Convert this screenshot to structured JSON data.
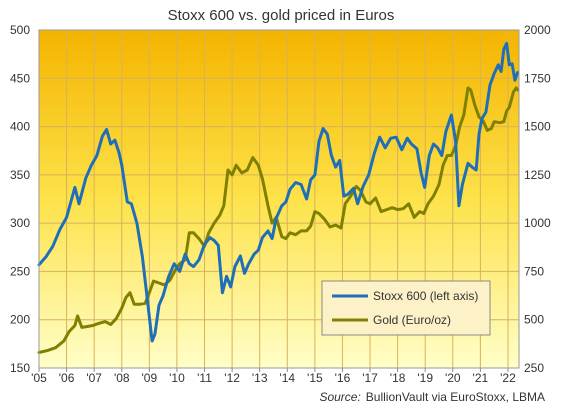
{
  "chart_data": {
    "type": "line",
    "title": "Stoxx 600 vs. gold priced in Euros",
    "x_ticks": [
      "'05",
      "'06",
      "'07",
      "'08",
      "'09",
      "'10",
      "'11",
      "'12",
      "'13",
      "'14",
      "'15",
      "'16",
      "'17",
      "'18",
      "'19",
      "'20",
      "'21",
      "'22"
    ],
    "xlim": [
      2005,
      2022.4
    ],
    "left_axis": {
      "ylim": [
        150,
        500
      ],
      "ticks": [
        150,
        200,
        250,
        300,
        350,
        400,
        450,
        500
      ]
    },
    "right_axis": {
      "ylim": [
        250,
        2000
      ],
      "ticks": [
        250,
        500,
        750,
        1000,
        1250,
        1500,
        1750,
        2000
      ]
    },
    "grid": true,
    "legend_position": "bottom-right",
    "series": [
      {
        "name": "Stoxx 600 (left axis)",
        "axis": "left",
        "color": "#1f6fb8",
        "points": [
          [
            2005.0,
            257
          ],
          [
            2005.25,
            265
          ],
          [
            2005.5,
            276
          ],
          [
            2005.75,
            293
          ],
          [
            2006.0,
            306
          ],
          [
            2006.3,
            337
          ],
          [
            2006.45,
            320
          ],
          [
            2006.7,
            347
          ],
          [
            2006.9,
            360
          ],
          [
            2007.1,
            370
          ],
          [
            2007.3,
            390
          ],
          [
            2007.45,
            397
          ],
          [
            2007.6,
            382
          ],
          [
            2007.75,
            386
          ],
          [
            2007.9,
            373
          ],
          [
            2008.0,
            360
          ],
          [
            2008.2,
            322
          ],
          [
            2008.35,
            320
          ],
          [
            2008.55,
            300
          ],
          [
            2008.75,
            265
          ],
          [
            2008.95,
            215
          ],
          [
            2009.1,
            178
          ],
          [
            2009.2,
            185
          ],
          [
            2009.35,
            215
          ],
          [
            2009.5,
            225
          ],
          [
            2009.7,
            245
          ],
          [
            2009.9,
            258
          ],
          [
            2010.1,
            250
          ],
          [
            2010.3,
            268
          ],
          [
            2010.45,
            258
          ],
          [
            2010.6,
            255
          ],
          [
            2010.8,
            262
          ],
          [
            2011.0,
            278
          ],
          [
            2011.2,
            285
          ],
          [
            2011.35,
            282
          ],
          [
            2011.5,
            277
          ],
          [
            2011.65,
            228
          ],
          [
            2011.8,
            245
          ],
          [
            2011.95,
            234
          ],
          [
            2012.1,
            255
          ],
          [
            2012.3,
            266
          ],
          [
            2012.45,
            248
          ],
          [
            2012.6,
            258
          ],
          [
            2012.8,
            268
          ],
          [
            2012.95,
            272
          ],
          [
            2013.1,
            285
          ],
          [
            2013.3,
            292
          ],
          [
            2013.45,
            284
          ],
          [
            2013.6,
            305
          ],
          [
            2013.8,
            318
          ],
          [
            2013.95,
            322
          ],
          [
            2014.1,
            335
          ],
          [
            2014.3,
            342
          ],
          [
            2014.5,
            340
          ],
          [
            2014.7,
            325
          ],
          [
            2014.85,
            345
          ],
          [
            2015.0,
            350
          ],
          [
            2015.15,
            385
          ],
          [
            2015.3,
            398
          ],
          [
            2015.45,
            392
          ],
          [
            2015.6,
            370
          ],
          [
            2015.75,
            358
          ],
          [
            2015.9,
            365
          ],
          [
            2016.05,
            328
          ],
          [
            2016.2,
            330
          ],
          [
            2016.4,
            336
          ],
          [
            2016.55,
            320
          ],
          [
            2016.75,
            338
          ],
          [
            2016.95,
            350
          ],
          [
            2017.15,
            372
          ],
          [
            2017.35,
            389
          ],
          [
            2017.55,
            378
          ],
          [
            2017.75,
            388
          ],
          [
            2017.95,
            389
          ],
          [
            2018.15,
            376
          ],
          [
            2018.35,
            388
          ],
          [
            2018.5,
            382
          ],
          [
            2018.7,
            377
          ],
          [
            2018.85,
            352
          ],
          [
            2018.98,
            337
          ],
          [
            2019.15,
            370
          ],
          [
            2019.3,
            382
          ],
          [
            2019.45,
            378
          ],
          [
            2019.6,
            370
          ],
          [
            2019.75,
            395
          ],
          [
            2019.95,
            412
          ],
          [
            2020.1,
            385
          ],
          [
            2020.22,
            318
          ],
          [
            2020.35,
            340
          ],
          [
            2020.55,
            362
          ],
          [
            2020.7,
            358
          ],
          [
            2020.85,
            355
          ],
          [
            2020.95,
            392
          ],
          [
            2021.05,
            408
          ],
          [
            2021.2,
            415
          ],
          [
            2021.35,
            443
          ],
          [
            2021.5,
            455
          ],
          [
            2021.65,
            464
          ],
          [
            2021.75,
            457
          ],
          [
            2021.85,
            480
          ],
          [
            2021.95,
            486
          ],
          [
            2022.05,
            464
          ],
          [
            2022.15,
            465
          ],
          [
            2022.25,
            448
          ],
          [
            2022.35,
            456
          ]
        ]
      },
      {
        "name": "Gold (Euro/oz)",
        "axis": "right",
        "color": "#808000",
        "points": [
          [
            2005.0,
            330
          ],
          [
            2005.3,
            340
          ],
          [
            2005.6,
            355
          ],
          [
            2005.9,
            390
          ],
          [
            2006.1,
            440
          ],
          [
            2006.3,
            470
          ],
          [
            2006.4,
            520
          ],
          [
            2006.55,
            460
          ],
          [
            2006.75,
            465
          ],
          [
            2006.95,
            470
          ],
          [
            2007.15,
            480
          ],
          [
            2007.4,
            490
          ],
          [
            2007.6,
            475
          ],
          [
            2007.8,
            505
          ],
          [
            2008.0,
            560
          ],
          [
            2008.15,
            615
          ],
          [
            2008.3,
            640
          ],
          [
            2008.45,
            580
          ],
          [
            2008.65,
            580
          ],
          [
            2008.85,
            585
          ],
          [
            2009.0,
            640
          ],
          [
            2009.15,
            700
          ],
          [
            2009.35,
            690
          ],
          [
            2009.55,
            680
          ],
          [
            2009.75,
            705
          ],
          [
            2009.95,
            760
          ],
          [
            2010.1,
            790
          ],
          [
            2010.3,
            810
          ],
          [
            2010.45,
            950
          ],
          [
            2010.6,
            950
          ],
          [
            2010.8,
            920
          ],
          [
            2011.0,
            880
          ],
          [
            2011.15,
            950
          ],
          [
            2011.35,
            1000
          ],
          [
            2011.55,
            1040
          ],
          [
            2011.7,
            1090
          ],
          [
            2011.85,
            1275
          ],
          [
            2012.0,
            1250
          ],
          [
            2012.15,
            1300
          ],
          [
            2012.35,
            1260
          ],
          [
            2012.55,
            1275
          ],
          [
            2012.75,
            1340
          ],
          [
            2012.95,
            1300
          ],
          [
            2013.1,
            1230
          ],
          [
            2013.3,
            1090
          ],
          [
            2013.45,
            1000
          ],
          [
            2013.6,
            1030
          ],
          [
            2013.8,
            930
          ],
          [
            2013.95,
            920
          ],
          [
            2014.1,
            950
          ],
          [
            2014.3,
            940
          ],
          [
            2014.5,
            960
          ],
          [
            2014.7,
            960
          ],
          [
            2014.85,
            985
          ],
          [
            2015.0,
            1060
          ],
          [
            2015.15,
            1050
          ],
          [
            2015.35,
            1020
          ],
          [
            2015.55,
            980
          ],
          [
            2015.75,
            990
          ],
          [
            2015.95,
            975
          ],
          [
            2016.1,
            1100
          ],
          [
            2016.3,
            1140
          ],
          [
            2016.5,
            1190
          ],
          [
            2016.65,
            1170
          ],
          [
            2016.85,
            1110
          ],
          [
            2017.0,
            1100
          ],
          [
            2017.2,
            1130
          ],
          [
            2017.4,
            1060
          ],
          [
            2017.6,
            1070
          ],
          [
            2017.8,
            1080
          ],
          [
            2018.0,
            1070
          ],
          [
            2018.2,
            1075
          ],
          [
            2018.4,
            1100
          ],
          [
            2018.6,
            1030
          ],
          [
            2018.8,
            1060
          ],
          [
            2018.95,
            1050
          ],
          [
            2019.1,
            1100
          ],
          [
            2019.3,
            1140
          ],
          [
            2019.5,
            1200
          ],
          [
            2019.65,
            1300
          ],
          [
            2019.8,
            1350
          ],
          [
            2019.95,
            1350
          ],
          [
            2020.1,
            1400
          ],
          [
            2020.25,
            1500
          ],
          [
            2020.4,
            1560
          ],
          [
            2020.55,
            1700
          ],
          [
            2020.65,
            1690
          ],
          [
            2020.8,
            1610
          ],
          [
            2020.95,
            1550
          ],
          [
            2021.1,
            1530
          ],
          [
            2021.25,
            1480
          ],
          [
            2021.4,
            1490
          ],
          [
            2021.5,
            1525
          ],
          [
            2021.7,
            1520
          ],
          [
            2021.85,
            1525
          ],
          [
            2021.95,
            1580
          ],
          [
            2022.05,
            1600
          ],
          [
            2022.2,
            1680
          ],
          [
            2022.3,
            1700
          ],
          [
            2022.35,
            1690
          ]
        ]
      }
    ],
    "source_label": "Source:",
    "source_text": "BullionVault via  EuroStoxx, LBMA"
  }
}
